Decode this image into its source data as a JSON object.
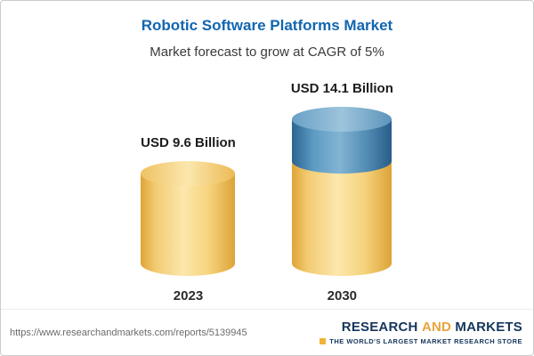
{
  "chart_data": {
    "type": "bar",
    "title": "Robotic Software Platforms Market",
    "subtitle": "Market forecast to grow at CAGR of 5%",
    "categories": [
      "2023",
      "2030"
    ],
    "values": [
      9.6,
      14.1
    ],
    "value_labels": [
      "USD 9.6 Billion",
      "USD 14.1 Billion"
    ],
    "unit": "USD Billion",
    "cagr": "5%",
    "ylim": [
      0,
      14.1
    ],
    "legend": "none",
    "grid": "off",
    "colors": {
      "base_segment": "#f3cf7a",
      "growth_segment": "#4a81ac",
      "title": "#1166b0"
    }
  },
  "footer": {
    "url": "https://www.researchandmarkets.com/reports/5139945",
    "logo": {
      "part1": "RESEARCH",
      "part2": "AND",
      "part3": "MARKETS",
      "tagline": "THE WORLD'S LARGEST MARKET RESEARCH STORE"
    }
  }
}
